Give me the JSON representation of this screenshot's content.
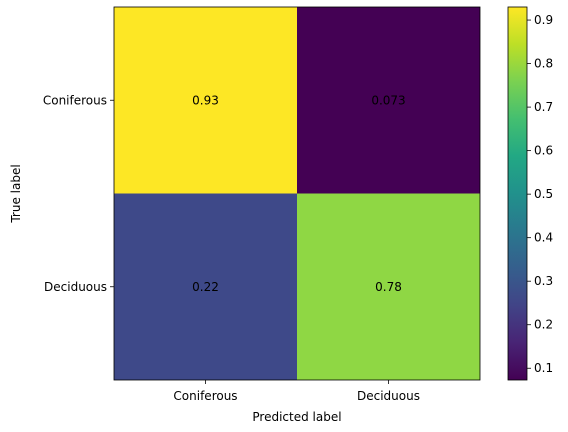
{
  "chart_data": {
    "type": "heatmap",
    "xlabel": "Predicted label",
    "ylabel": "True label",
    "x_categories": [
      "Coniferous",
      "Deciduous"
    ],
    "y_categories": [
      "Coniferous",
      "Deciduous"
    ],
    "values": [
      [
        0.93,
        0.073
      ],
      [
        0.22,
        0.78
      ]
    ],
    "cell_labels": [
      [
        "0.93",
        "0.073"
      ],
      [
        "0.22",
        "0.78"
      ]
    ],
    "colorscale": "viridis",
    "cell_colors": [
      [
        "#fde725",
        "#440154"
      ],
      [
        "#3e4989",
        "#8fd744"
      ]
    ],
    "cell_text_colors": [
      [
        "#000000",
        "#fde725"
      ],
      [
        "#fde725",
        "#000000"
      ]
    ],
    "colorbar": {
      "range": [
        0.073,
        0.93
      ],
      "ticks": [
        0.1,
        0.2,
        0.3,
        0.4,
        0.5,
        0.6,
        0.7,
        0.8,
        0.9
      ],
      "tick_labels": [
        "0.1",
        "0.2",
        "0.3",
        "0.4",
        "0.5",
        "0.6",
        "0.7",
        "0.8",
        "0.9"
      ]
    }
  }
}
